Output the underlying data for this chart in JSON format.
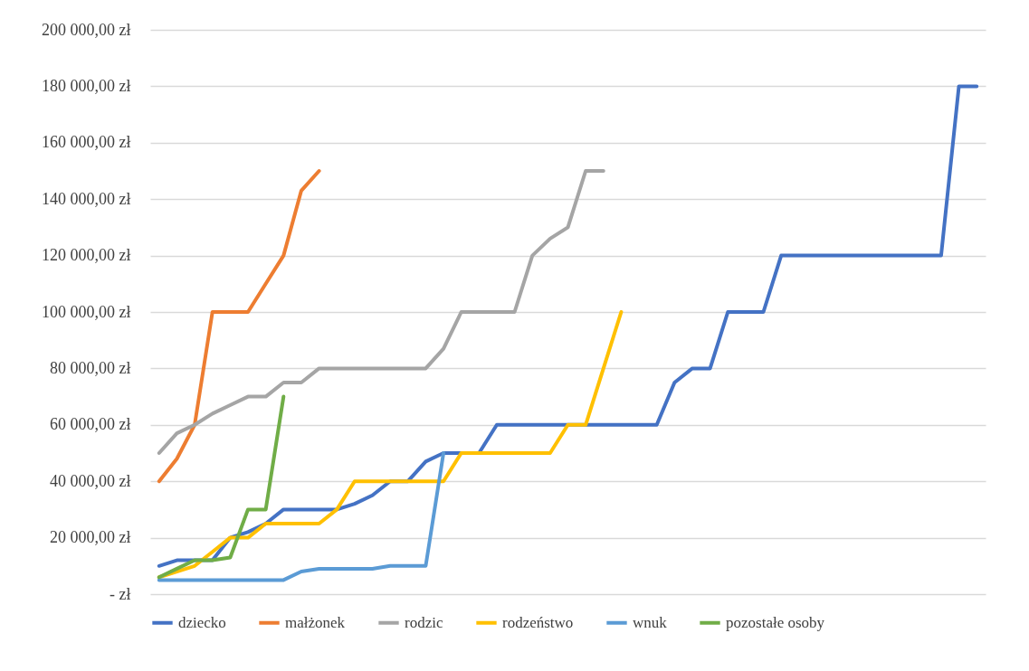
{
  "chart_data": {
    "type": "line",
    "categories": [
      null,
      null,
      null,
      null,
      null,
      null,
      null,
      null,
      null,
      null,
      null,
      null,
      null,
      null,
      null,
      null,
      null,
      null,
      null,
      null,
      null,
      null,
      null,
      null,
      null,
      null,
      null,
      null,
      null,
      null,
      null,
      null,
      null,
      null,
      null,
      null,
      null,
      null,
      null,
      null,
      null,
      null,
      null,
      null,
      null,
      null,
      null
    ],
    "ylim": [
      0,
      200000
    ],
    "yticks": [
      {
        "value": 0,
        "label": "-   zł"
      },
      {
        "value": 20000,
        "label": "20 000,00 zł"
      },
      {
        "value": 40000,
        "label": "40 000,00 zł"
      },
      {
        "value": 60000,
        "label": "60 000,00 zł"
      },
      {
        "value": 80000,
        "label": "80 000,00 zł"
      },
      {
        "value": 100000,
        "label": "100 000,00 zł"
      },
      {
        "value": 120000,
        "label": "120 000,00 zł"
      },
      {
        "value": 140000,
        "label": "140 000,00 zł"
      },
      {
        "value": 160000,
        "label": "160 000,00 zł"
      },
      {
        "value": 180000,
        "label": "180 000,00 zł"
      },
      {
        "value": 200000,
        "label": "200 000,00 zł"
      }
    ],
    "grid": "y",
    "legend": "bottom",
    "marker": "none",
    "line_style": "solid",
    "tick_labels": "y",
    "series": [
      {
        "name": "dziecko",
        "color": "#4472c4",
        "values": [
          10000,
          12000,
          12000,
          12000,
          20000,
          22000,
          25000,
          30000,
          30000,
          30000,
          30000,
          32000,
          35000,
          40000,
          40000,
          47000,
          50000,
          50000,
          50000,
          60000,
          60000,
          60000,
          60000,
          60000,
          60000,
          60000,
          60000,
          60000,
          60000,
          75000,
          80000,
          80000,
          100000,
          100000,
          100000,
          120000,
          120000,
          120000,
          120000,
          120000,
          120000,
          120000,
          120000,
          120000,
          120000,
          180000,
          180000
        ]
      },
      {
        "name": "małżonek",
        "color": "#ed7d31",
        "values": [
          40000,
          48000,
          60000,
          100000,
          100000,
          100000,
          110000,
          120000,
          143000,
          150000,
          null,
          null,
          null,
          null,
          null,
          null,
          null,
          null,
          null,
          null,
          null,
          null,
          null,
          null,
          null,
          null,
          null,
          null,
          null,
          null,
          null,
          null,
          null,
          null,
          null,
          null,
          null,
          null,
          null,
          null,
          null,
          null,
          null,
          null,
          null,
          null,
          null
        ]
      },
      {
        "name": "rodzic",
        "color": "#a5a5a5",
        "values": [
          50000,
          57000,
          60000,
          64000,
          67000,
          70000,
          70000,
          75000,
          75000,
          80000,
          80000,
          80000,
          80000,
          80000,
          80000,
          80000,
          87000,
          100000,
          100000,
          100000,
          100000,
          120000,
          126000,
          130000,
          150000,
          150000,
          null,
          null,
          null,
          null,
          null,
          null,
          null,
          null,
          null,
          null,
          null,
          null,
          null,
          null,
          null,
          null,
          null,
          null,
          null,
          null,
          null
        ]
      },
      {
        "name": "rodzeństwo",
        "color": "#ffc000",
        "values": [
          6000,
          8000,
          10000,
          15000,
          20000,
          20000,
          25000,
          25000,
          25000,
          25000,
          30000,
          40000,
          40000,
          40000,
          40000,
          40000,
          40000,
          50000,
          50000,
          50000,
          50000,
          50000,
          50000,
          60000,
          60000,
          80000,
          100000,
          null,
          null,
          null,
          null,
          null,
          null,
          null,
          null,
          null,
          null,
          null,
          null,
          null,
          null,
          null,
          null,
          null,
          null,
          null,
          null
        ]
      },
      {
        "name": "wnuk",
        "color": "#5b9bd5",
        "values": [
          5000,
          5000,
          5000,
          5000,
          5000,
          5000,
          5000,
          5000,
          8000,
          9000,
          9000,
          9000,
          9000,
          10000,
          10000,
          10000,
          50000,
          null,
          null,
          null,
          null,
          null,
          null,
          null,
          null,
          null,
          null,
          null,
          null,
          null,
          null,
          null,
          null,
          null,
          null,
          null,
          null,
          null,
          null,
          null,
          null,
          null,
          null,
          null,
          null,
          null,
          null
        ]
      },
      {
        "name": "pozostałe osoby",
        "color": "#70ad47",
        "values": [
          6000,
          9000,
          12000,
          12000,
          13000,
          30000,
          30000,
          70000,
          null,
          null,
          null,
          null,
          null,
          null,
          null,
          null,
          null,
          null,
          null,
          null,
          null,
          null,
          null,
          null,
          null,
          null,
          null,
          null,
          null,
          null,
          null,
          null,
          null,
          null,
          null,
          null,
          null,
          null,
          null,
          null,
          null,
          null,
          null,
          null,
          null,
          null,
          null
        ]
      }
    ]
  }
}
